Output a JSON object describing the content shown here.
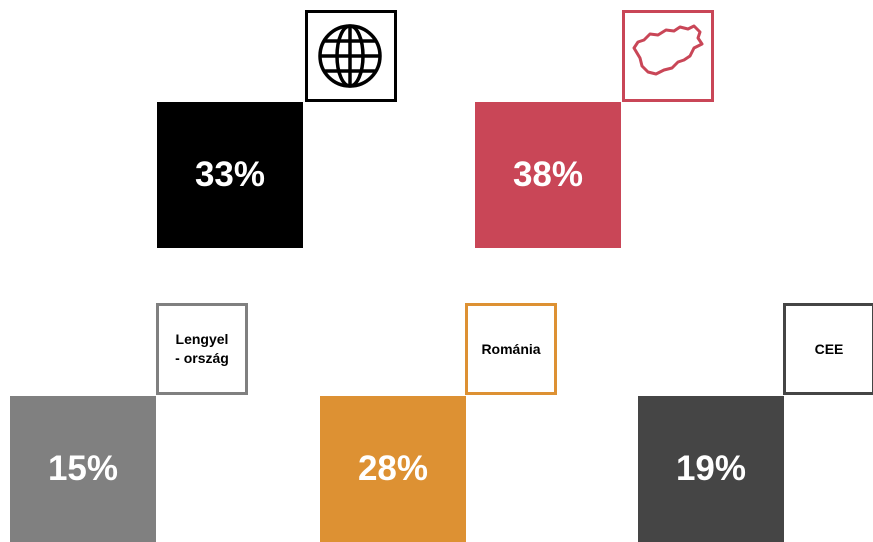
{
  "tiles": [
    {
      "value": "33%",
      "color": "#000000"
    },
    {
      "value": "38%",
      "color": "#c94657"
    },
    {
      "value": "15%",
      "color": "#808080",
      "label": [
        "Lengyel",
        "- ország"
      ]
    },
    {
      "value": "28%",
      "color": "#dd9133",
      "label": [
        "Románia"
      ]
    },
    {
      "value": "19%",
      "color": "#454545",
      "label": [
        "CEE"
      ]
    }
  ]
}
